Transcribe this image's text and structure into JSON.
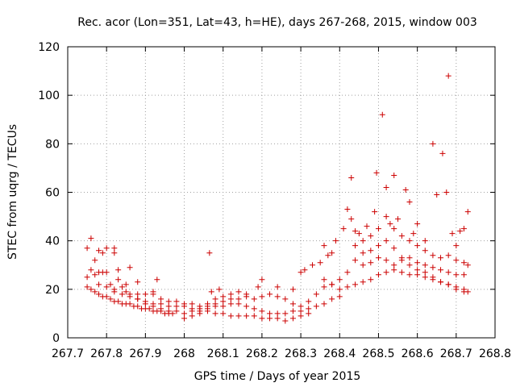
{
  "chart_data": {
    "type": "scatter",
    "title": "Rec. acor (Lon=351, Lat=43, h=HE), days 267-268, 2015, window 003",
    "xlabel": "GPS time / Days of year 2015",
    "ylabel": "STEC from uqrg / TECUs",
    "xlim": [
      267.7,
      268.8
    ],
    "ylim": [
      0,
      120
    ],
    "xticks": [
      "267.7",
      "267.8",
      "267.9",
      "268",
      "268.1",
      "268.2",
      "268.3",
      "268.4",
      "268.5",
      "268.6",
      "268.7",
      "268.8"
    ],
    "yticks": [
      "0",
      "20",
      "40",
      "60",
      "80",
      "100",
      "120"
    ],
    "grid": true,
    "marker": "+",
    "color": "#cc0000",
    "series": [
      {
        "name": "STEC",
        "points": [
          [
            267.75,
            37
          ],
          [
            267.76,
            41
          ],
          [
            267.77,
            32
          ],
          [
            267.78,
            36
          ],
          [
            267.79,
            35
          ],
          [
            267.8,
            37
          ],
          [
            267.82,
            37
          ],
          [
            267.82,
            35
          ],
          [
            267.83,
            28
          ],
          [
            267.85,
            22
          ],
          [
            267.86,
            29
          ],
          [
            267.88,
            23
          ],
          [
            267.92,
            19
          ],
          [
            267.93,
            24
          ],
          [
            267.75,
            25
          ],
          [
            267.76,
            28
          ],
          [
            267.77,
            26
          ],
          [
            267.78,
            27
          ],
          [
            267.79,
            27
          ],
          [
            267.8,
            27
          ],
          [
            267.81,
            22
          ],
          [
            267.83,
            24
          ],
          [
            267.84,
            21
          ],
          [
            267.86,
            18
          ],
          [
            267.88,
            16
          ],
          [
            267.9,
            14
          ],
          [
            267.92,
            13
          ],
          [
            267.94,
            12
          ],
          [
            267.96,
            11
          ],
          [
            267.98,
            11
          ],
          [
            267.75,
            21
          ],
          [
            267.76,
            20
          ],
          [
            267.77,
            19
          ],
          [
            267.78,
            18
          ],
          [
            267.79,
            17
          ],
          [
            267.8,
            17
          ],
          [
            267.81,
            16
          ],
          [
            267.82,
            15
          ],
          [
            267.83,
            15
          ],
          [
            267.84,
            14
          ],
          [
            267.85,
            14
          ],
          [
            267.86,
            14
          ],
          [
            267.87,
            13
          ],
          [
            267.88,
            13
          ],
          [
            267.89,
            12
          ],
          [
            267.9,
            12
          ],
          [
            267.91,
            12
          ],
          [
            267.92,
            11
          ],
          [
            267.93,
            11
          ],
          [
            267.94,
            11
          ],
          [
            267.95,
            10
          ],
          [
            267.96,
            10
          ],
          [
            267.97,
            10
          ],
          [
            267.78,
            22
          ],
          [
            267.8,
            21
          ],
          [
            267.82,
            20
          ],
          [
            267.84,
            18
          ],
          [
            267.86,
            17
          ],
          [
            267.88,
            16
          ],
          [
            267.9,
            15
          ],
          [
            267.92,
            14
          ],
          [
            267.94,
            14
          ],
          [
            267.96,
            13
          ],
          [
            267.98,
            13
          ],
          [
            267.82,
            19
          ],
          [
            267.85,
            19
          ],
          [
            267.88,
            18
          ],
          [
            267.9,
            18
          ],
          [
            267.92,
            18
          ],
          [
            267.94,
            16
          ],
          [
            267.96,
            15
          ],
          [
            267.98,
            15
          ],
          [
            268.0,
            14
          ],
          [
            268.02,
            14
          ],
          [
            268.04,
            13
          ],
          [
            268.06,
            13
          ],
          [
            268.08,
            14
          ],
          [
            268.1,
            15
          ],
          [
            268.12,
            16
          ],
          [
            268.14,
            16
          ],
          [
            268.16,
            17
          ],
          [
            268.0,
            13
          ],
          [
            268.02,
            12
          ],
          [
            268.04,
            12
          ],
          [
            268.06,
            14
          ],
          [
            268.08,
            16
          ],
          [
            268.1,
            17
          ],
          [
            268.12,
            18
          ],
          [
            268.14,
            19
          ],
          [
            268.16,
            18
          ],
          [
            268.18,
            16
          ],
          [
            268.2,
            17
          ],
          [
            268.22,
            18
          ],
          [
            268.24,
            17
          ],
          [
            268.26,
            16
          ],
          [
            268.28,
            14
          ],
          [
            268.3,
            13
          ],
          [
            268.32,
            15
          ],
          [
            268.34,
            18
          ],
          [
            268.36,
            21
          ],
          [
            268.38,
            22
          ],
          [
            268.0,
            10
          ],
          [
            268.02,
            11
          ],
          [
            268.04,
            11
          ],
          [
            268.06,
            12
          ],
          [
            268.08,
            13
          ],
          [
            268.1,
            13
          ],
          [
            268.12,
            14
          ],
          [
            268.14,
            14
          ],
          [
            268.16,
            13
          ],
          [
            268.18,
            12
          ],
          [
            268.2,
            11
          ],
          [
            268.22,
            10
          ],
          [
            268.24,
            10
          ],
          [
            268.26,
            10
          ],
          [
            268.28,
            11
          ],
          [
            268.3,
            11
          ],
          [
            268.32,
            12
          ],
          [
            268.34,
            13
          ],
          [
            268.36,
            14
          ],
          [
            268.38,
            16
          ],
          [
            268.4,
            17
          ],
          [
            268.0,
            8
          ],
          [
            268.02,
            9
          ],
          [
            268.04,
            10
          ],
          [
            268.06,
            11
          ],
          [
            268.08,
            10
          ],
          [
            268.1,
            10
          ],
          [
            268.12,
            9
          ],
          [
            268.14,
            9
          ],
          [
            268.16,
            9
          ],
          [
            268.18,
            9
          ],
          [
            268.2,
            8
          ],
          [
            268.22,
            8
          ],
          [
            268.24,
            8
          ],
          [
            268.26,
            7
          ],
          [
            268.28,
            8
          ],
          [
            268.3,
            9
          ],
          [
            268.32,
            10
          ],
          [
            268.065,
            35
          ],
          [
            268.07,
            19
          ],
          [
            268.09,
            20
          ],
          [
            268.19,
            21
          ],
          [
            268.2,
            24
          ],
          [
            268.24,
            21
          ],
          [
            268.28,
            20
          ],
          [
            268.3,
            27
          ],
          [
            268.31,
            28
          ],
          [
            268.33,
            30
          ],
          [
            268.35,
            31
          ],
          [
            268.36,
            38
          ],
          [
            268.37,
            34
          ],
          [
            268.38,
            35
          ],
          [
            268.39,
            40
          ],
          [
            268.41,
            45
          ],
          [
            268.42,
            53
          ],
          [
            268.43,
            49
          ],
          [
            268.44,
            44
          ],
          [
            268.36,
            24
          ],
          [
            268.38,
            22
          ],
          [
            268.4,
            24
          ],
          [
            268.42,
            27
          ],
          [
            268.44,
            32
          ],
          [
            268.46,
            35
          ],
          [
            268.48,
            36
          ],
          [
            268.5,
            38
          ],
          [
            268.52,
            40
          ],
          [
            268.54,
            37
          ],
          [
            268.56,
            33
          ],
          [
            268.58,
            30
          ],
          [
            268.6,
            28
          ],
          [
            268.62,
            27
          ],
          [
            268.64,
            25
          ],
          [
            268.66,
            23
          ],
          [
            268.68,
            22
          ],
          [
            268.7,
            20
          ],
          [
            268.72,
            19
          ],
          [
            268.73,
            19
          ],
          [
            268.4,
            20
          ],
          [
            268.42,
            21
          ],
          [
            268.44,
            22
          ],
          [
            268.46,
            23
          ],
          [
            268.48,
            24
          ],
          [
            268.5,
            26
          ],
          [
            268.52,
            27
          ],
          [
            268.54,
            28
          ],
          [
            268.56,
            27
          ],
          [
            268.58,
            26
          ],
          [
            268.6,
            26
          ],
          [
            268.62,
            25
          ],
          [
            268.64,
            24
          ],
          [
            268.66,
            23
          ],
          [
            268.68,
            22
          ],
          [
            268.7,
            21
          ],
          [
            268.72,
            20
          ],
          [
            268.43,
            66
          ],
          [
            268.45,
            43
          ],
          [
            268.47,
            46
          ],
          [
            268.49,
            52
          ],
          [
            268.495,
            68
          ],
          [
            268.51,
            92
          ],
          [
            268.52,
            62
          ],
          [
            268.53,
            47
          ],
          [
            268.54,
            67
          ],
          [
            268.55,
            49
          ],
          [
            268.57,
            61
          ],
          [
            268.58,
            56
          ],
          [
            268.59,
            43
          ],
          [
            268.6,
            47
          ],
          [
            268.62,
            40
          ],
          [
            268.64,
            80
          ],
          [
            268.65,
            59
          ],
          [
            268.665,
            76
          ],
          [
            268.675,
            60
          ],
          [
            268.68,
            108
          ],
          [
            268.69,
            43
          ],
          [
            268.7,
            38
          ],
          [
            268.71,
            44
          ],
          [
            268.72,
            45
          ],
          [
            268.73,
            52
          ],
          [
            268.44,
            38
          ],
          [
            268.46,
            40
          ],
          [
            268.48,
            42
          ],
          [
            268.5,
            45
          ],
          [
            268.52,
            50
          ],
          [
            268.54,
            45
          ],
          [
            268.56,
            42
          ],
          [
            268.58,
            40
          ],
          [
            268.6,
            38
          ],
          [
            268.62,
            36
          ],
          [
            268.64,
            34
          ],
          [
            268.66,
            33
          ],
          [
            268.68,
            34
          ],
          [
            268.7,
            32
          ],
          [
            268.72,
            31
          ],
          [
            268.73,
            30
          ],
          [
            268.46,
            30
          ],
          [
            268.48,
            31
          ],
          [
            268.5,
            33
          ],
          [
            268.52,
            32
          ],
          [
            268.54,
            30
          ],
          [
            268.56,
            32
          ],
          [
            268.58,
            33
          ],
          [
            268.6,
            31
          ],
          [
            268.62,
            30
          ],
          [
            268.64,
            29
          ],
          [
            268.66,
            28
          ],
          [
            268.68,
            27
          ],
          [
            268.7,
            26
          ],
          [
            268.72,
            26
          ]
        ]
      }
    ]
  }
}
